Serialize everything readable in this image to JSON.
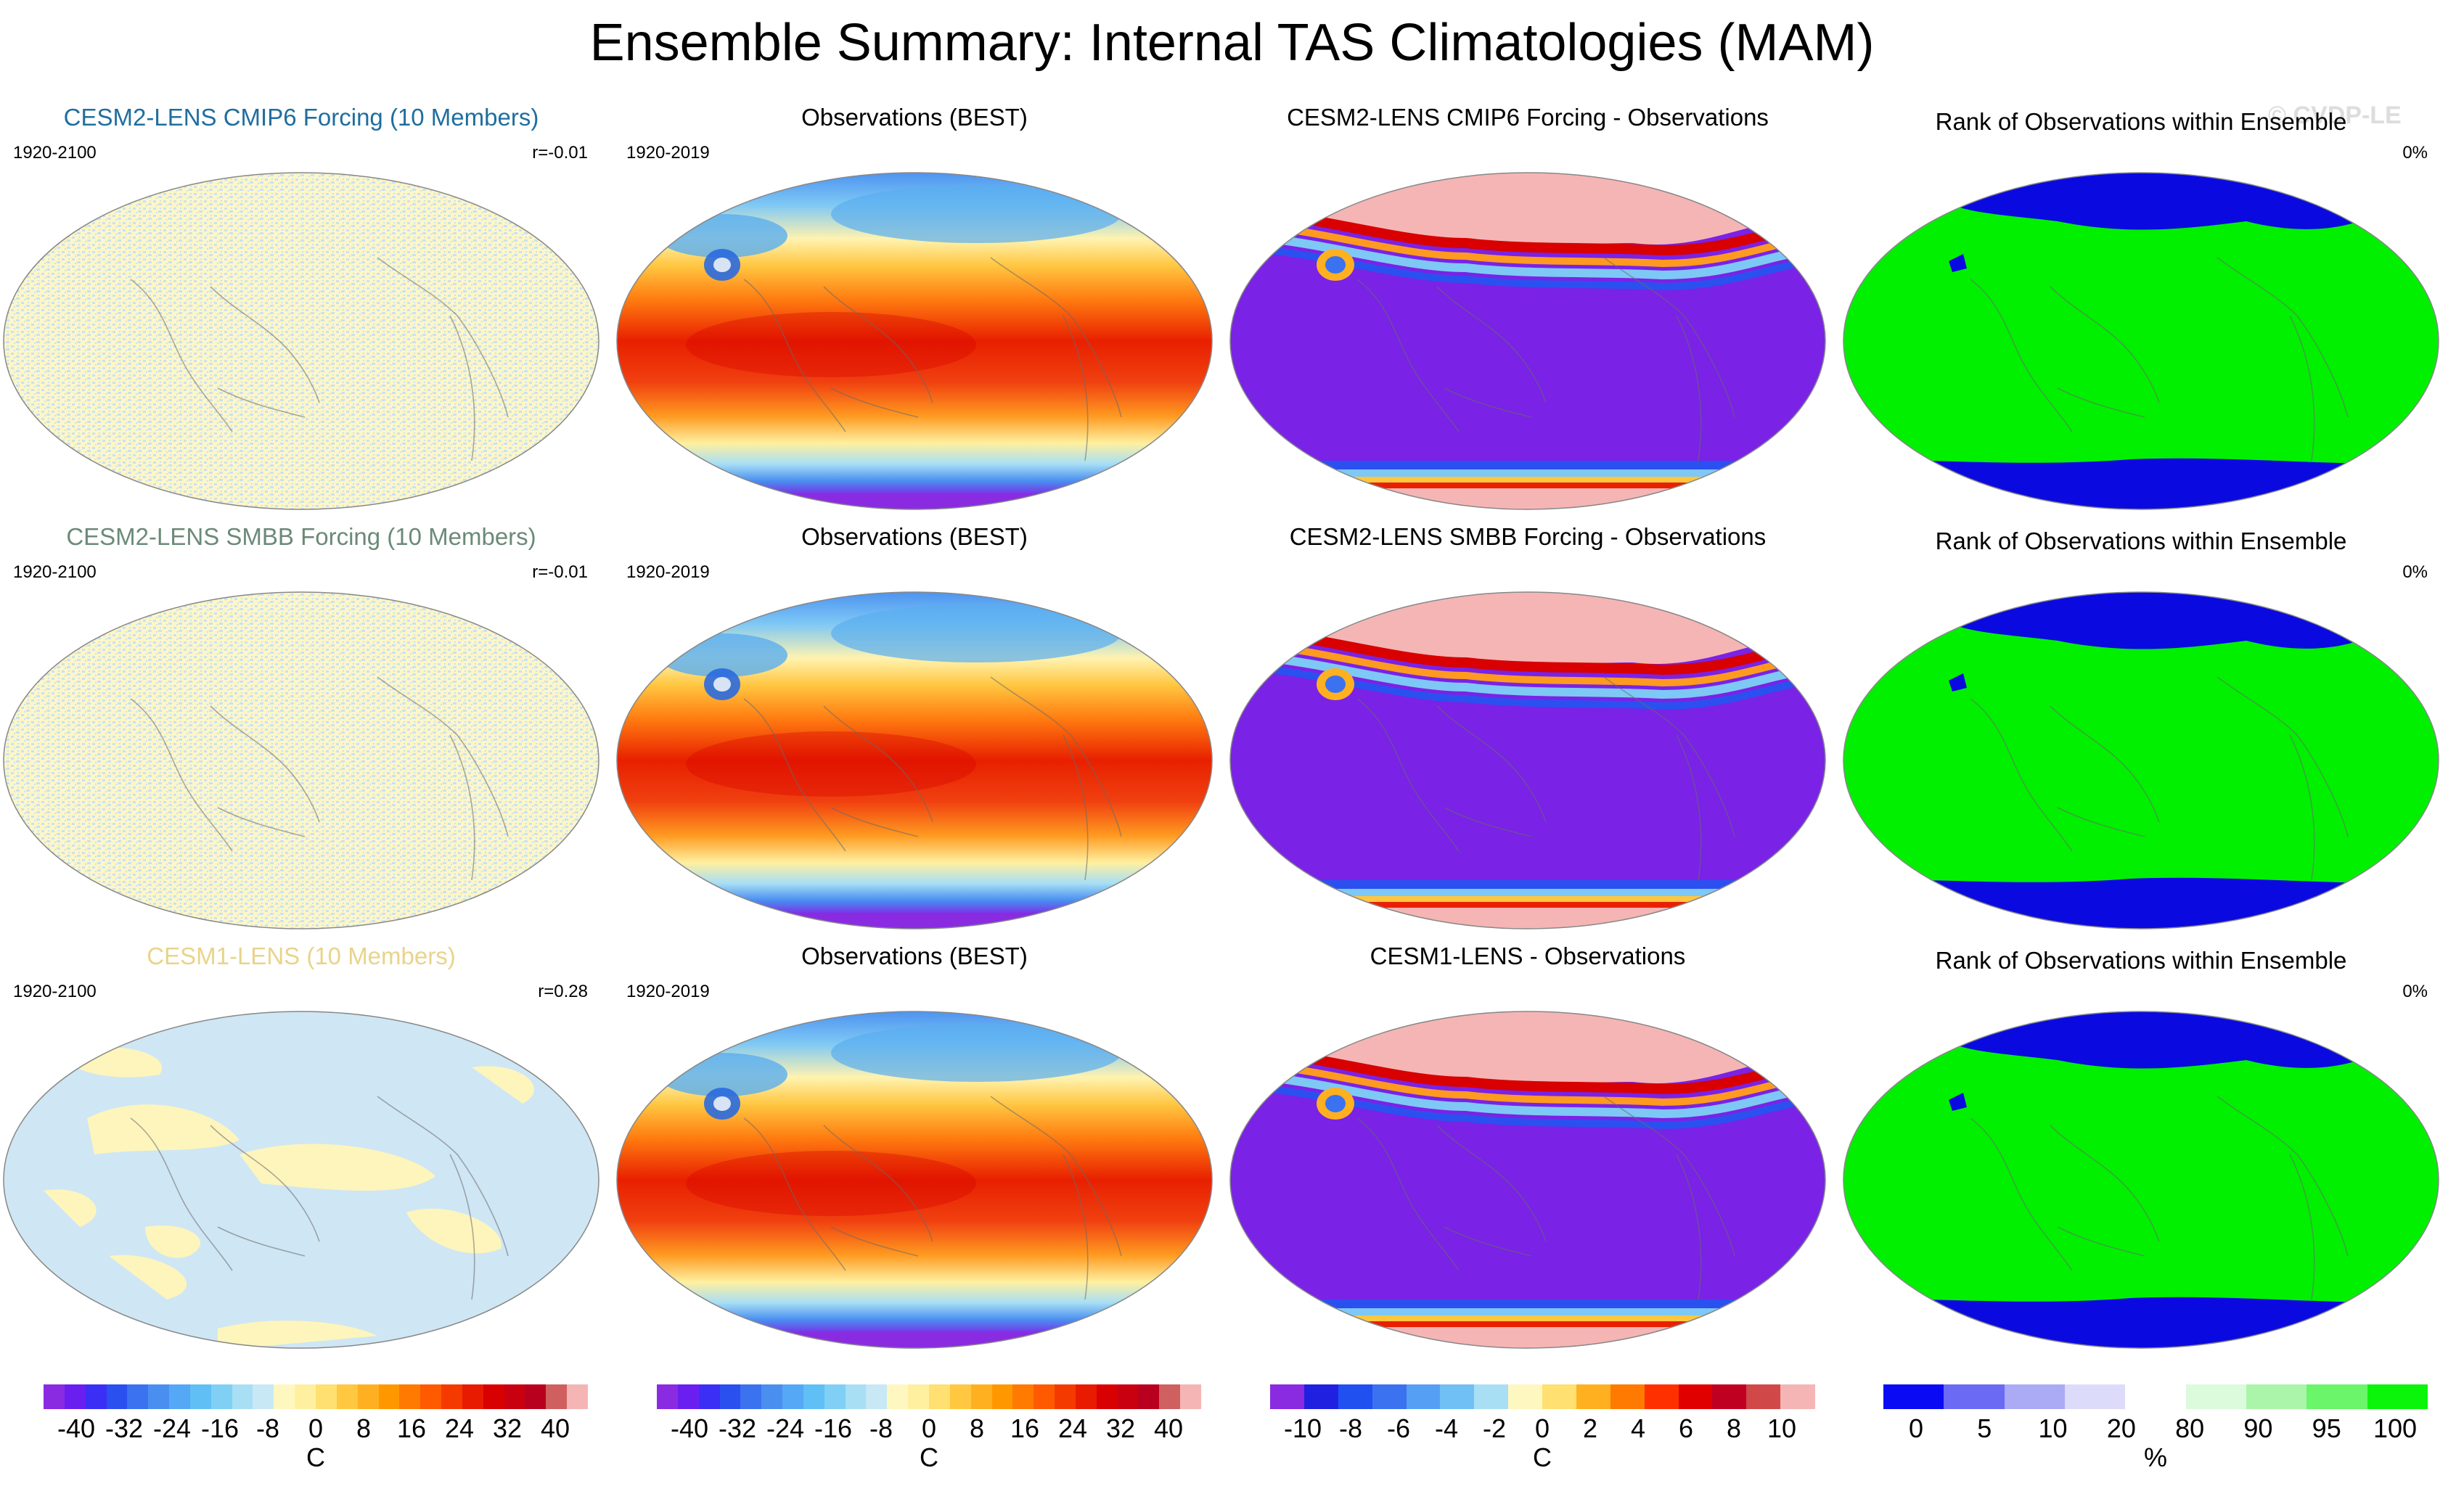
{
  "title": "Ensemble Summary: Internal TAS Climatologies (MAM)",
  "watermark": "© CVDP-LE",
  "rows": [
    {
      "model": {
        "title": "CESM2-LENS CMIP6 Forcing (10 Members)",
        "color": "#1f6e9e",
        "years": "1920-2100",
        "corr": "r=-0.01"
      },
      "obs": {
        "title": "Observations (BEST)",
        "years": "1920-2019"
      },
      "diff": {
        "title": "CESM2-LENS CMIP6 Forcing - Observations"
      },
      "rank": {
        "title": "Rank of Observations within Ensemble",
        "pct": "0%"
      }
    },
    {
      "model": {
        "title": "CESM2-LENS SMBB Forcing (10 Members)",
        "color": "#6b8a78",
        "years": "1920-2100",
        "corr": "r=-0.01"
      },
      "obs": {
        "title": "Observations (BEST)",
        "years": "1920-2019"
      },
      "diff": {
        "title": "CESM2-LENS SMBB Forcing - Observations"
      },
      "rank": {
        "title": "Rank of Observations within Ensemble",
        "pct": "0%"
      }
    },
    {
      "model": {
        "title": "CESM1-LENS (10 Members)",
        "color": "#e8d48a",
        "years": "1920-2100",
        "corr": "r=0.28"
      },
      "obs": {
        "title": "Observations (BEST)",
        "years": "1920-2019"
      },
      "diff": {
        "title": "CESM1-LENS - Observations"
      },
      "rank": {
        "title": "Rank of Observations within Ensemble",
        "pct": "0%"
      }
    }
  ],
  "colorbars": [
    {
      "name": "model-colorbar",
      "unit": "C",
      "ticks": [
        "-40",
        "-32",
        "-24",
        "-16",
        "-8",
        "0",
        "8",
        "16",
        "24",
        "32",
        "40"
      ],
      "colors": [
        "#8a2be2",
        "#6a1ff0",
        "#3b2ff5",
        "#2b50f0",
        "#3b72f0",
        "#4a8ff0",
        "#55a8f5",
        "#60c0f5",
        "#80d0f5",
        "#a8dff5",
        "#c8e8f5",
        "#fff7c0",
        "#fff0a0",
        "#ffe070",
        "#ffc840",
        "#ffb020",
        "#ff9800",
        "#ff7a00",
        "#ff5a00",
        "#f53a00",
        "#e81a00",
        "#d80000",
        "#c80010",
        "#b8001e",
        "#d06060",
        "#f5b5b5"
      ]
    },
    {
      "name": "obs-colorbar",
      "unit": "C",
      "ticks": [
        "-40",
        "-32",
        "-24",
        "-16",
        "-8",
        "0",
        "8",
        "16",
        "24",
        "32",
        "40"
      ],
      "colors": [
        "#8a2be2",
        "#6a1ff0",
        "#3b2ff5",
        "#2b50f0",
        "#3b72f0",
        "#4a8ff0",
        "#55a8f5",
        "#60c0f5",
        "#80d0f5",
        "#a8dff5",
        "#c8e8f5",
        "#fff7c0",
        "#fff0a0",
        "#ffe070",
        "#ffc840",
        "#ffb020",
        "#ff9800",
        "#ff7a00",
        "#ff5a00",
        "#f53a00",
        "#e81a00",
        "#d80000",
        "#c80010",
        "#b8001e",
        "#d06060",
        "#f5b5b5"
      ]
    },
    {
      "name": "diff-colorbar",
      "unit": "C",
      "ticks": [
        "-10",
        "-8",
        "-6",
        "-4",
        "-2",
        "0",
        "2",
        "4",
        "6",
        "8",
        "10"
      ],
      "colors": [
        "#8a2be2",
        "#2020e0",
        "#2050f0",
        "#3b72f0",
        "#55a0f5",
        "#70c0f5",
        "#a8dff5",
        "#fff7c0",
        "#ffe070",
        "#ffb020",
        "#ff7a00",
        "#ff3000",
        "#e00000",
        "#c00020",
        "#d04848",
        "#f5b5b5"
      ]
    },
    {
      "name": "rank-colorbar",
      "unit": "%",
      "ticks": [
        "0",
        "5",
        "10",
        "20",
        "80",
        "90",
        "95",
        "100"
      ],
      "colors": [
        "#0a0af5",
        "#6a6af5",
        "#aaaaf5",
        "#dcdcfa",
        "#ffffff",
        "#dcfadc",
        "#aaf5aa",
        "#6af56a",
        "#0af50a"
      ]
    }
  ]
}
